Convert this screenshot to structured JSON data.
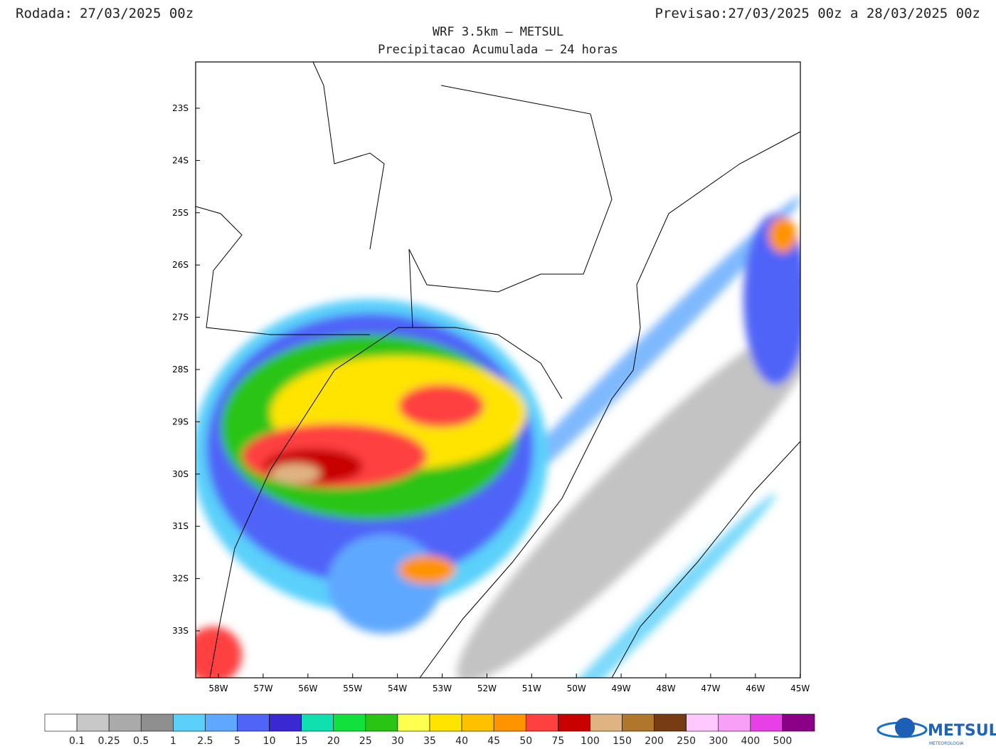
{
  "header": {
    "run_label": "Rodada:",
    "run_value": "27/03/2025 00z",
    "forecast_label": "Previsao:",
    "forecast_value": "27/03/2025 00z a 28/03/2025 00z"
  },
  "title": "WRF 3.5km – METSUL",
  "subtitle": "Precipitacao Acumulada – 24 horas",
  "map": {
    "lat_labels": [
      "23S",
      "24S",
      "25S",
      "26S",
      "27S",
      "28S",
      "29S",
      "30S",
      "31S",
      "32S",
      "33S"
    ],
    "lon_labels": [
      "58W",
      "57W",
      "56W",
      "55W",
      "54W",
      "53W",
      "52W",
      "51W",
      "50W",
      "49W",
      "48W",
      "47W",
      "46W",
      "45W"
    ]
  },
  "colorbar": {
    "colors": [
      "#ffffff",
      "#c8c8c8",
      "#aaaaaa",
      "#8f8f8f",
      "#5ad0fa",
      "#5fa8ff",
      "#5064f8",
      "#3a28d2",
      "#10e0b0",
      "#12e03c",
      "#2ac414",
      "#ffff50",
      "#ffe400",
      "#ffc000",
      "#ff9400",
      "#ff4040",
      "#c80000",
      "#e0b482",
      "#b0762c",
      "#783c14",
      "#ffc8ff",
      "#f8a0f8",
      "#e640e6",
      "#8c0088"
    ],
    "labels": [
      "0.1",
      "0.25",
      "0.5",
      "1",
      "2.5",
      "5",
      "10",
      "15",
      "20",
      "25",
      "30",
      "35",
      "40",
      "45",
      "50",
      "75",
      "100",
      "150",
      "200",
      "250",
      "300",
      "400",
      "500"
    ]
  },
  "logo": {
    "name": "METSUL",
    "tagline": "METEOROLOGIA"
  }
}
